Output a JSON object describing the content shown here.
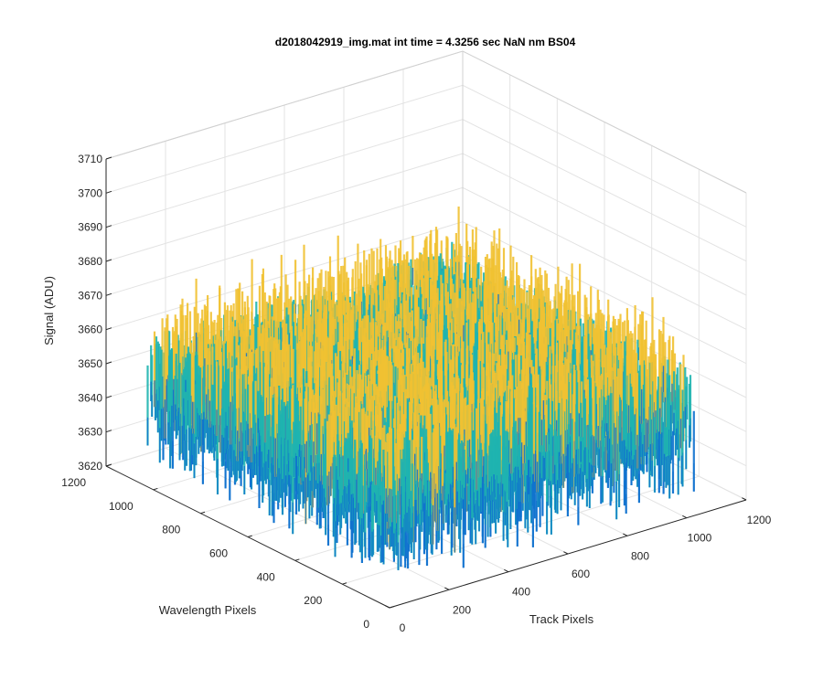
{
  "chart_data": {
    "type": "surface",
    "title": "d2018042919_img.mat int time = 4.3256 sec  NaN nm BS04",
    "xlabel": "Track Pixels",
    "ylabel": "Wavelength Pixels",
    "zlabel": "Signal (ADU)",
    "xlim": [
      0,
      1200
    ],
    "ylim": [
      0,
      1200
    ],
    "zlim": [
      3620,
      3710
    ],
    "x_ticks": [
      "0",
      "200",
      "400",
      "600",
      "800",
      "1000",
      "1200"
    ],
    "y_ticks": [
      "0",
      "200",
      "400",
      "600",
      "800",
      "1000",
      "1200"
    ],
    "z_ticks": [
      "3620",
      "3630",
      "3640",
      "3650",
      "3660",
      "3670",
      "3680",
      "3690",
      "3700",
      "3710"
    ],
    "data_extent": {
      "x": [
        0,
        1024
      ],
      "y": [
        0,
        1024
      ]
    },
    "signal_mean": 3650,
    "signal_noise_range": [
      3625,
      3690
    ],
    "grid": true,
    "colormap": "parula",
    "colors": {
      "low": "#0f72cf",
      "mid": "#1fb4b0",
      "high": "#f1c232"
    }
  }
}
